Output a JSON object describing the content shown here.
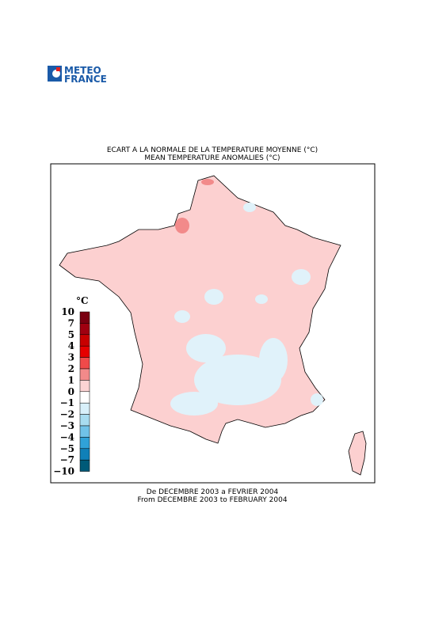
{
  "header": {
    "logo_line1": "METEO",
    "logo_line2": "FRANCE"
  },
  "map": {
    "title": "ECART A LA NORMALE DE LA TEMPERATURE MOYENNE (°C)",
    "subtitle": "MEAN TEMPERATURE ANOMALIES (°C)",
    "period_fr": "De DECEMBRE 2003 a FEVRIER 2004",
    "period_en": "From DECEMBRE 2003 to FEBRUARY 2004",
    "legend": {
      "unit": "°C",
      "labels": [
        "10",
        "7",
        "5",
        "4",
        "3",
        "2",
        "1",
        "0",
        "−1",
        "−2",
        "−3",
        "−4",
        "−5",
        "−7",
        "−10"
      ],
      "colors": [
        "#7a0010",
        "#a00010",
        "#c80000",
        "#e60000",
        "#f04a4a",
        "#f28a8a",
        "#fcd4d4",
        "#ffffff",
        "#d8f0fa",
        "#a8dcf0",
        "#70c2e8",
        "#30a2d8",
        "#1080b8",
        "#005a78"
      ]
    }
  }
}
